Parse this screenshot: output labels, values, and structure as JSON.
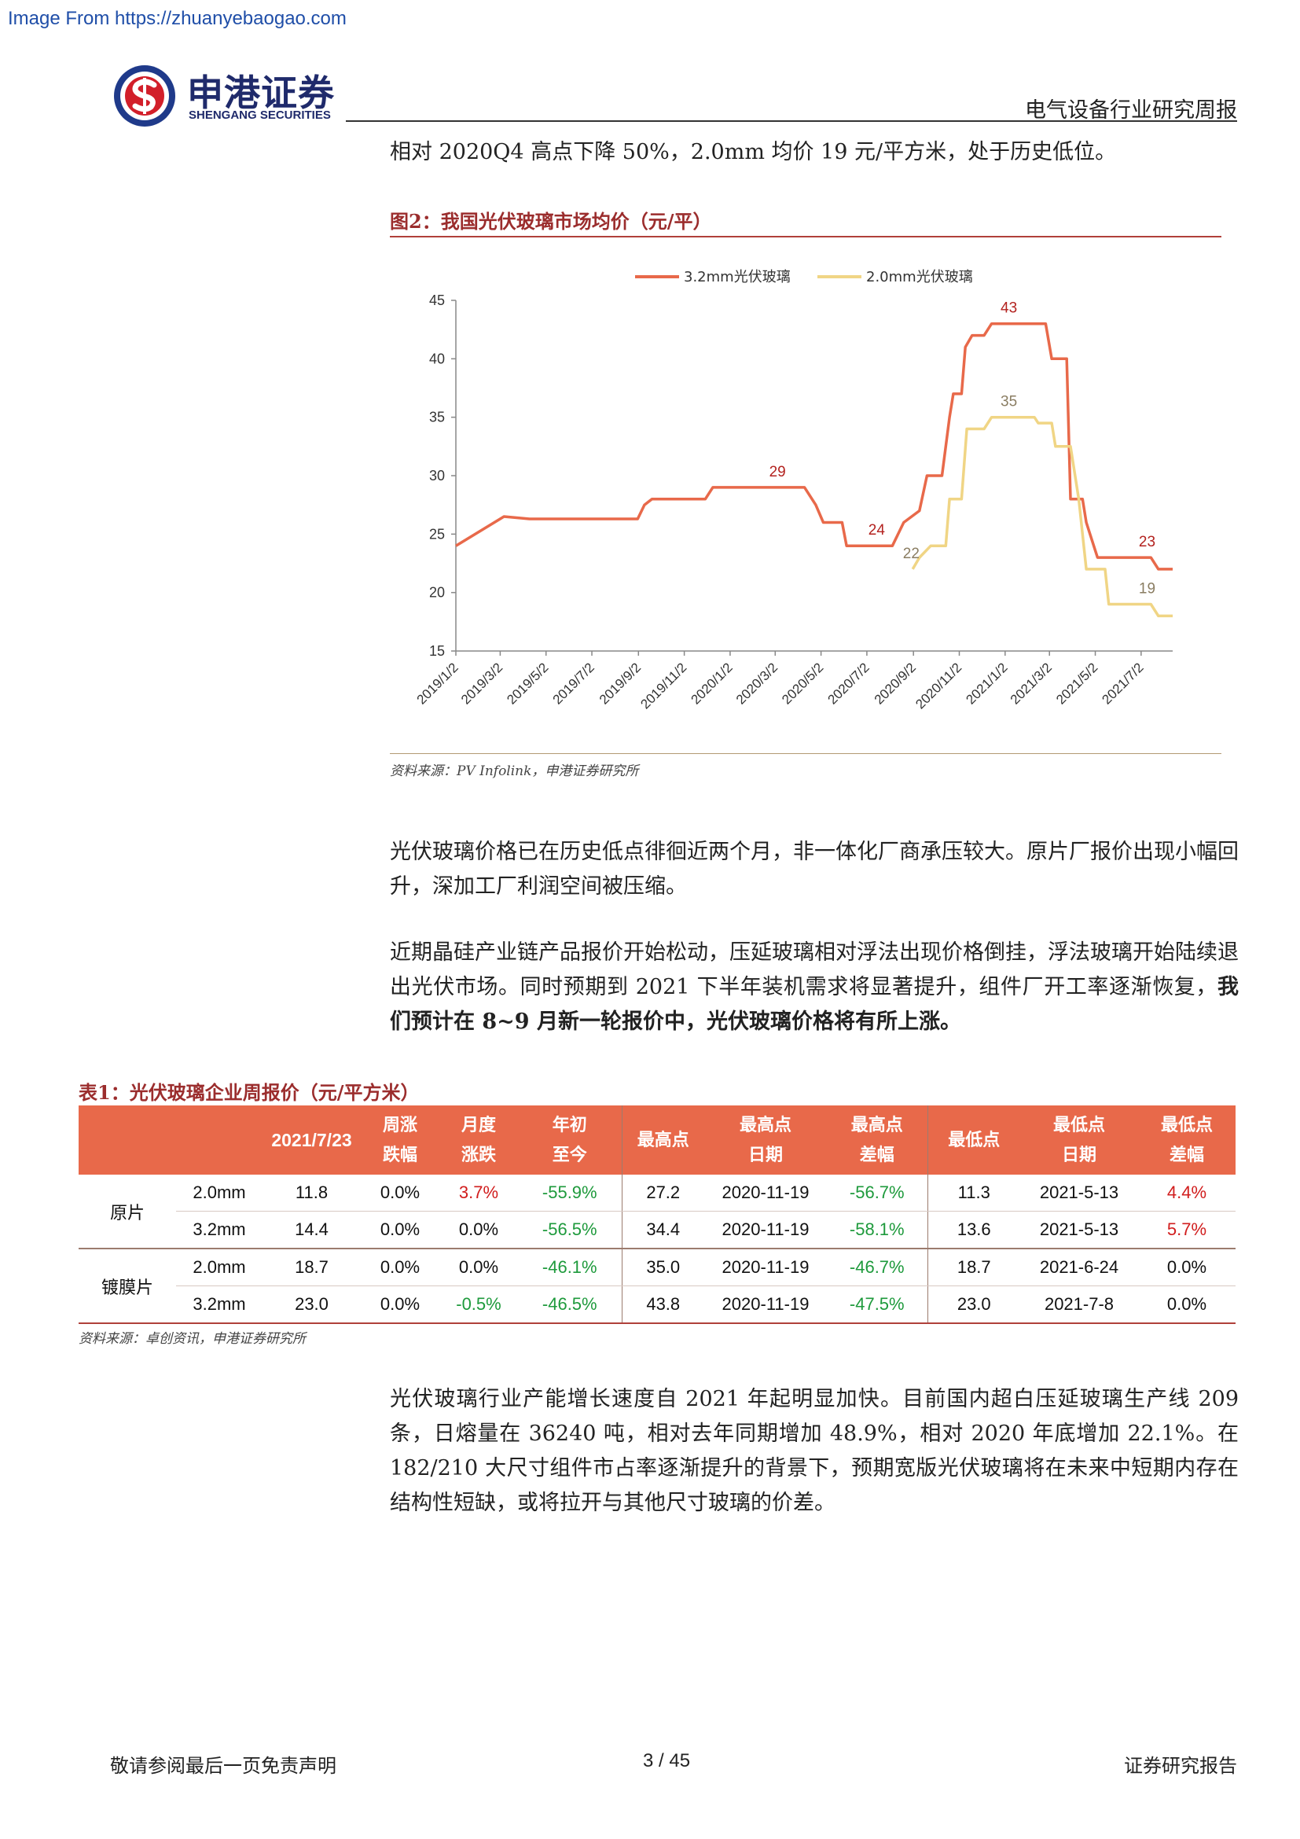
{
  "watermark": "Image From https://zhuanyebaogao.com",
  "header": {
    "logo_cn": "申港证券",
    "logo_en": "SHENGANG SECURITIES",
    "report_type": "电气设备行业研究周报"
  },
  "intro_line": "相对 2020Q4 高点下降 50%，2.0mm 均价 19 元/平方米，处于历史低位。",
  "figure": {
    "title": "图2：我国光伏玻璃市场均价（元/平）",
    "source": "资料来源：PV Infolink，申港证券研究所"
  },
  "chart_data": {
    "type": "line",
    "title": "",
    "xlabel": "",
    "ylabel": "",
    "ylim": [
      15,
      45
    ],
    "yticks": [
      15,
      20,
      25,
      30,
      35,
      40,
      45
    ],
    "xlim": [
      "2019-01-02",
      "2021-08-13"
    ],
    "x_tick_labels": [
      "2019/1/2",
      "2019/3/2",
      "2019/5/2",
      "2019/7/2",
      "2019/9/2",
      "2019/11/2",
      "2020/1/2",
      "2020/3/2",
      "2020/5/2",
      "2020/7/2",
      "2020/9/2",
      "2020/11/2",
      "2021/1/2",
      "2021/3/2",
      "2021/5/2",
      "2021/7/2"
    ],
    "grid": false,
    "legend": "top",
    "series": [
      {
        "name": "3.2mm光伏玻璃",
        "color": "#e8694a",
        "step": true,
        "points": [
          [
            "2019-01-02",
            24.0
          ],
          [
            "2019-03-07",
            26.5
          ],
          [
            "2019-04-10",
            26.3
          ],
          [
            "2019-09-01",
            26.3
          ],
          [
            "2019-09-10",
            27.5
          ],
          [
            "2019-09-20",
            28.0
          ],
          [
            "2019-11-30",
            28.0
          ],
          [
            "2019-12-10",
            29.0
          ],
          [
            "2020-04-10",
            29.0
          ],
          [
            "2020-04-25",
            27.5
          ],
          [
            "2020-05-05",
            26.0
          ],
          [
            "2020-05-30",
            26.0
          ],
          [
            "2020-06-05",
            24.0
          ],
          [
            "2020-08-05",
            24.0
          ],
          [
            "2020-08-20",
            26.0
          ],
          [
            "2020-09-10",
            27.0
          ],
          [
            "2020-09-20",
            30.0
          ],
          [
            "2020-10-10",
            30.0
          ],
          [
            "2020-10-20",
            35.0
          ],
          [
            "2020-10-25",
            37.0
          ],
          [
            "2020-11-05",
            37.0
          ],
          [
            "2020-11-10",
            41.0
          ],
          [
            "2020-11-19",
            42.0
          ],
          [
            "2020-12-05",
            42.0
          ],
          [
            "2020-12-15",
            43.0
          ],
          [
            "2021-02-25",
            43.0
          ],
          [
            "2021-03-05",
            40.0
          ],
          [
            "2021-03-25",
            40.0
          ],
          [
            "2021-03-30",
            28.0
          ],
          [
            "2021-04-15",
            28.0
          ],
          [
            "2021-04-20",
            26.0
          ],
          [
            "2021-04-30",
            24.0
          ],
          [
            "2021-05-05",
            23.0
          ],
          [
            "2021-07-15",
            23.0
          ],
          [
            "2021-07-25",
            22.0
          ],
          [
            "2021-08-13",
            22.0
          ]
        ],
        "labels": [
          {
            "x": "2020-03-05",
            "y": 29,
            "text": "29"
          },
          {
            "x": "2020-07-15",
            "y": 24,
            "text": "24"
          },
          {
            "x": "2021-01-07",
            "y": 43,
            "text": "43"
          },
          {
            "x": "2021-07-10",
            "y": 23,
            "text": "23"
          }
        ]
      },
      {
        "name": "2.0mm光伏玻璃",
        "color": "#f0d585",
        "step": true,
        "points": [
          [
            "2020-09-01",
            22.0
          ],
          [
            "2020-09-10",
            23.0
          ],
          [
            "2020-09-25",
            24.0
          ],
          [
            "2020-10-15",
            24.0
          ],
          [
            "2020-10-20",
            28.0
          ],
          [
            "2020-11-05",
            28.0
          ],
          [
            "2020-11-12",
            34.0
          ],
          [
            "2020-12-05",
            34.0
          ],
          [
            "2020-12-15",
            35.0
          ],
          [
            "2021-02-10",
            35.0
          ],
          [
            "2021-02-15",
            34.5
          ],
          [
            "2021-03-05",
            34.5
          ],
          [
            "2021-03-10",
            32.5
          ],
          [
            "2021-03-30",
            32.5
          ],
          [
            "2021-04-10",
            28.0
          ],
          [
            "2021-04-20",
            22.0
          ],
          [
            "2021-05-15",
            22.0
          ],
          [
            "2021-05-20",
            19.0
          ],
          [
            "2021-07-15",
            19.0
          ],
          [
            "2021-07-25",
            18.0
          ],
          [
            "2021-08-13",
            18.0
          ]
        ],
        "labels": [
          {
            "x": "2020-08-30",
            "y": 22,
            "text": "22"
          },
          {
            "x": "2021-01-07",
            "y": 35,
            "text": "35"
          },
          {
            "x": "2021-07-10",
            "y": 19,
            "text": "19"
          }
        ]
      }
    ]
  },
  "paragraph1": "光伏玻璃价格已在历史低点徘徊近两个月，非一体化厂商承压较大。原片厂报价出现小幅回升，深加工厂利润空间被压缩。",
  "paragraph2_normal": "近期晶硅产业链产品报价开始松动，压延玻璃相对浮法出现价格倒挂，浮法玻璃开始陆续退出光伏市场。同时预期到 2021 下半年装机需求将显著提升，组件厂开工率逐渐恢复，",
  "paragraph2_bold": "我们预计在 8~9 月新一轮报价中，光伏玻璃价格将有所上涨。",
  "table": {
    "title": "表1：光伏玻璃企业周报价（元/平方米）",
    "headers": {
      "date": "2021/7/23",
      "weekly_1": "周涨",
      "weekly_2": "跌幅",
      "monthly_1": "月度",
      "monthly_2": "涨跌",
      "ytd_1": "年初",
      "ytd_2": "至今",
      "high": "最高点",
      "high_date_1": "最高点",
      "high_date_2": "日期",
      "high_diff_1": "最高点",
      "high_diff_2": "差幅",
      "low": "最低点",
      "low_date_1": "最低点",
      "low_date_2": "日期",
      "low_diff_1": "最低点",
      "low_diff_2": "差幅"
    },
    "groups": [
      {
        "name": "原片",
        "rows": [
          {
            "spec": "2.0mm",
            "price": "11.8",
            "weekly": "0.0%",
            "monthly": "3.7%",
            "ytd": "-55.9%",
            "high": "27.2",
            "high_date": "2020-11-19",
            "high_diff": "-56.7%",
            "low": "11.3",
            "low_date": "2021-5-13",
            "low_diff": "4.4%"
          },
          {
            "spec": "3.2mm",
            "price": "14.4",
            "weekly": "0.0%",
            "monthly": "0.0%",
            "ytd": "-56.5%",
            "high": "34.4",
            "high_date": "2020-11-19",
            "high_diff": "-58.1%",
            "low": "13.6",
            "low_date": "2021-5-13",
            "low_diff": "5.7%"
          }
        ]
      },
      {
        "name": "镀膜片",
        "rows": [
          {
            "spec": "2.0mm",
            "price": "18.7",
            "weekly": "0.0%",
            "monthly": "0.0%",
            "ytd": "-46.1%",
            "high": "35.0",
            "high_date": "2020-11-19",
            "high_diff": "-46.7%",
            "low": "18.7",
            "low_date": "2021-6-24",
            "low_diff": "0.0%"
          },
          {
            "spec": "3.2mm",
            "price": "23.0",
            "weekly": "0.0%",
            "monthly": "-0.5%",
            "ytd": "-46.5%",
            "high": "43.8",
            "high_date": "2020-11-19",
            "high_diff": "-47.5%",
            "low": "23.0",
            "low_date": "2021-7-8",
            "low_diff": "0.0%"
          }
        ]
      }
    ],
    "source": "资料来源：卓创资讯，申港证券研究所"
  },
  "paragraph3": "光伏玻璃行业产能增长速度自 2021 年起明显加快。目前国内超白压延玻璃生产线 209 条，日熔量在 36240 吨，相对去年同期增加 48.9%，相对 2020 年底增加 22.1%。在 182/210 大尺寸组件市占率逐渐提升的背景下，预期宽版光伏玻璃将在未来中短期内存在结构性短缺，或将拉开与其他尺寸玻璃的价差。",
  "footer": {
    "disclaimer": "敬请参阅最后一页免责声明",
    "page": "3 / 45",
    "report_label": "证券研究报告"
  }
}
